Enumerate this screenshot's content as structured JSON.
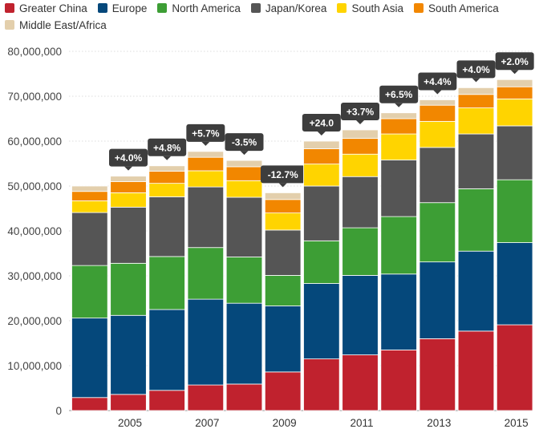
{
  "chart_data": {
    "type": "bar",
    "stacked": true,
    "title": "",
    "xlabel": "",
    "ylabel": "",
    "ylim": [
      0,
      80000000
    ],
    "yticks": [
      "0",
      "10,000,000",
      "20,000,000",
      "30,000,000",
      "40,000,000",
      "50,000,000",
      "60,000,000",
      "70,000,000",
      "80,000,000"
    ],
    "ytick_values": [
      0,
      10000000,
      20000000,
      30000000,
      40000000,
      50000000,
      60000000,
      70000000,
      80000000
    ],
    "categories": [
      "2004",
      "2005",
      "2006",
      "2007",
      "2008",
      "2009",
      "2010",
      "2011",
      "2012",
      "2013",
      "2014",
      "2015"
    ],
    "xtick_labels": [
      "",
      "2005",
      "",
      "2007",
      "",
      "2009",
      "",
      "2011",
      "",
      "2013",
      "",
      "2015"
    ],
    "grid": true,
    "legend_position": "top-left",
    "series": [
      {
        "name": "Greater China",
        "color": "#c0222e",
        "values": [
          2900000,
          3600000,
          4500000,
          5700000,
          5900000,
          8600000,
          11500000,
          12400000,
          13500000,
          16000000,
          17700000,
          19100000
        ]
      },
      {
        "name": "Europe",
        "color": "#05487b",
        "values": [
          17700000,
          17600000,
          18000000,
          19100000,
          18000000,
          14700000,
          16800000,
          17700000,
          16900000,
          17100000,
          17800000,
          18300000
        ]
      },
      {
        "name": "North America",
        "color": "#3d9e35",
        "values": [
          11700000,
          11600000,
          11800000,
          11500000,
          10300000,
          6800000,
          9500000,
          10600000,
          12800000,
          13200000,
          13900000,
          14000000
        ]
      },
      {
        "name": "Japan/Korea",
        "color": "#555555",
        "values": [
          11800000,
          12500000,
          13300000,
          13500000,
          13300000,
          10100000,
          12200000,
          11400000,
          12600000,
          12300000,
          12200000,
          12000000
        ]
      },
      {
        "name": "South Asia",
        "color": "#ffd400",
        "values": [
          2600000,
          3200000,
          3000000,
          3600000,
          3700000,
          3800000,
          4900000,
          5000000,
          5800000,
          5800000,
          5800000,
          6000000
        ]
      },
      {
        "name": "South America",
        "color": "#f28700",
        "values": [
          2100000,
          2500000,
          2700000,
          3000000,
          3100000,
          3000000,
          3400000,
          3500000,
          3400000,
          3600000,
          3000000,
          2700000
        ]
      },
      {
        "name": "Middle East/Africa",
        "color": "#e3cfac",
        "values": [
          1200000,
          1200000,
          1200000,
          1300000,
          1400000,
          1500000,
          1700000,
          1900000,
          1300000,
          1200000,
          1500000,
          1600000
        ]
      }
    ],
    "annotations": [
      "",
      "+4.0%",
      "+4.8%",
      "+5.7%",
      "-3.5%",
      "-12.7%",
      "+24.0",
      "+3.7%",
      "+6.5%",
      "+4.4%",
      "+4.0%",
      "+2.0%"
    ]
  }
}
